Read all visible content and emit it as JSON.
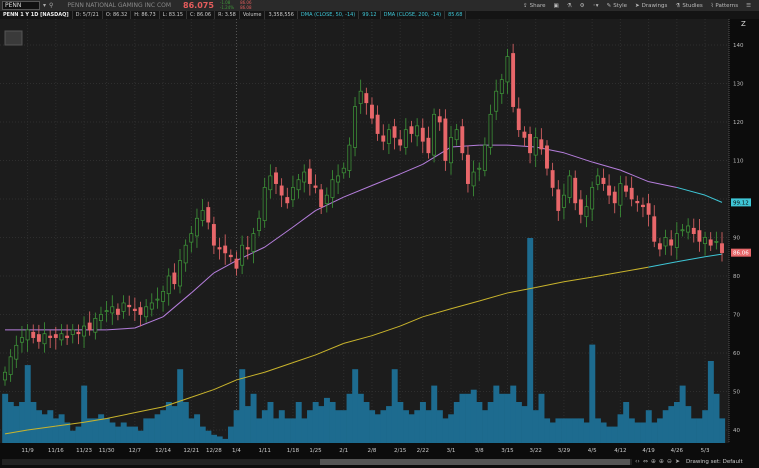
{
  "header": {
    "symbol": "PENN",
    "company": "PENN NATIONAL GAMING INC COM",
    "last": "86.075",
    "change_top": "-1.08",
    "change_bottom": "-1.24%",
    "bid": "86.06",
    "ask": "86.08"
  },
  "toolbar": {
    "share": "Share",
    "style": "Style",
    "drawings": "Drawings",
    "studies": "Studies",
    "patterns": "Patterns"
  },
  "info": {
    "title": "PENN 1 Y 1D [NASDAQ]",
    "date": "D: 5/7/21",
    "open": "O: 86.32",
    "high": "H: 86.73",
    "low": "L: 83.15",
    "close": "C: 86.06",
    "range": "R: 3.58",
    "volume_label": "Volume",
    "volume": "3,358,556",
    "dma50_label": "DMA (CLOSE, 50, -14)",
    "dma50": "99.12",
    "dma200_label": "DMA (CLOSE, 200, -14)",
    "dma200": "85.68"
  },
  "footer": {
    "drawing_set": "Drawing set: Default"
  },
  "colors": {
    "up": "#3f9a3a",
    "down": "#e8676a",
    "volume": "#1d6b8f",
    "ma50": "#b57edc",
    "ma200": "#c9b42c",
    "ma_recent": "#3ec6d6"
  },
  "chart_data": {
    "type": "candlestick",
    "title": "PENN 1 Y 1D [NASDAQ]",
    "ylim": [
      40,
      140
    ],
    "yticks": [
      40,
      50,
      60,
      70,
      80,
      90,
      100,
      110,
      120,
      130,
      140
    ],
    "week_labels": [
      "",
      "11/9",
      "11/16",
      "11/23",
      "11/30",
      "12/7",
      "12/14",
      "12/21",
      "12/28",
      "1/4",
      "1/11",
      "1/18",
      "1/25",
      "2/1",
      "2/8",
      "2/15",
      "2/22",
      "3/1",
      "3/8",
      "3/15",
      "3/22",
      "3/29",
      "4/5",
      "4/12",
      "4/19",
      "4/26",
      "5/3"
    ],
    "closes": [
      [
        55,
        59,
        62,
        64
      ],
      [
        66,
        64,
        63,
        65,
        64
      ],
      [
        64,
        65,
        64,
        66,
        65
      ],
      [
        67,
        66,
        69,
        70
      ],
      [
        71,
        72,
        70,
        73,
        72
      ],
      [
        71,
        70,
        72,
        73,
        74
      ],
      [
        76,
        80,
        78,
        84,
        88
      ],
      [
        91,
        95,
        97,
        94
      ],
      [
        88,
        87,
        86,
        85
      ],
      [
        82,
        88,
        87,
        91,
        95
      ],
      [
        103,
        106,
        104,
        101,
        99
      ],
      [
        103,
        105,
        107,
        104
      ],
      [
        103,
        98,
        101,
        105,
        106
      ],
      [
        108,
        114,
        124,
        128,
        125
      ],
      [
        121,
        117,
        115,
        118,
        116
      ],
      [
        114,
        118,
        117,
        119
      ],
      [
        115,
        112,
        122,
        120,
        110
      ],
      [
        116,
        118,
        112,
        104,
        107
      ],
      [
        108,
        114,
        122,
        128,
        131
      ],
      [
        137,
        124,
        118,
        116,
        112
      ],
      [
        116,
        113,
        108,
        103,
        97
      ],
      [
        101,
        106,
        99,
        96,
        98
      ],
      [
        103,
        106,
        104,
        101,
        99
      ],
      [
        104,
        102,
        100,
        99,
        98
      ],
      [
        96,
        89,
        87,
        90,
        88
      ],
      [
        91,
        92,
        93,
        91,
        89
      ],
      [
        90,
        88,
        89,
        86.06
      ]
    ],
    "volume_millions": [
      [
        6,
        5,
        4.5,
        5
      ],
      [
        9.5,
        5,
        4,
        3.5,
        4
      ],
      [
        3,
        3.5,
        2.5,
        1.5,
        2
      ],
      [
        7,
        3,
        3,
        3.5
      ],
      [
        3,
        2.5,
        2,
        2.5,
        2
      ],
      [
        2,
        1.5,
        3,
        3,
        3.5
      ],
      [
        4,
        5,
        4.5,
        9,
        5
      ],
      [
        3,
        3.5,
        2,
        1.5
      ],
      [
        1,
        0.8,
        0.5,
        2
      ],
      [
        4,
        9,
        4.5,
        6,
        3
      ],
      [
        4,
        5,
        3,
        4,
        3
      ],
      [
        3,
        5,
        3,
        4
      ],
      [
        5,
        4.5,
        5.5,
        5,
        4
      ],
      [
        4,
        6,
        9,
        6,
        5
      ],
      [
        4,
        3.5,
        4,
        4.5,
        9
      ],
      [
        5,
        4,
        3.5,
        4
      ],
      [
        5,
        4,
        7,
        4,
        3
      ],
      [
        3.5,
        5,
        6,
        6,
        6.5
      ],
      [
        5,
        4,
        5,
        7,
        6
      ],
      [
        6,
        7,
        5,
        4.5,
        25
      ],
      [
        4,
        6,
        3,
        2.5,
        3
      ],
      [
        3,
        3,
        3,
        3,
        2.5
      ],
      [
        12,
        3,
        2.5,
        2,
        2
      ],
      [
        3.5,
        5,
        3,
        2.5,
        2.5
      ],
      [
        4,
        2.5,
        3,
        4,
        4.5
      ],
      [
        5,
        7,
        4.5,
        3,
        3
      ],
      [
        4,
        10,
        6,
        3
      ]
    ],
    "dma50_weekly": [
      66,
      66,
      66,
      66,
      66,
      66.5,
      69.4,
      75.6,
      80.8,
      84,
      87.5,
      92.7,
      97,
      100.5,
      103.5,
      106.5,
      109,
      113.5,
      114,
      114,
      113.5,
      112,
      109.6,
      107.5,
      104.5,
      103,
      101,
      99.12
    ],
    "dma200_weekly": [
      39,
      40,
      41,
      42,
      43,
      44.5,
      46,
      48.5,
      50.5,
      53,
      55,
      57.5,
      59.5,
      62.5,
      64.5,
      67,
      69.4,
      71.5,
      73.5,
      75.6,
      77,
      78.5,
      79.7,
      81,
      82.3,
      83.7,
      85,
      85.68
    ],
    "dma50_color_change_week": "4/26",
    "dma200_color_change_week": "4/19",
    "last_price_tag": "86.06",
    "dma50_tag": "99.12"
  }
}
